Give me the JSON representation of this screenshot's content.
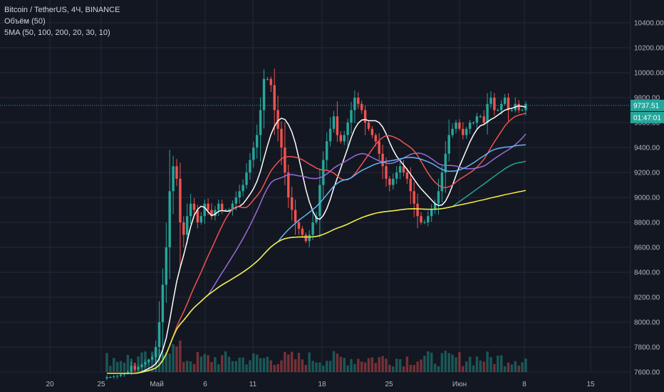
{
  "legend": {
    "symbol": "Bitcoin / TetherUS, 4Ч, BINANCE",
    "volume": "Объём (50)",
    "ma": "5MA (50, 100, 200, 20, 30, 10)"
  },
  "badges": {
    "price": "9737.51",
    "countdown": "01:47:01"
  },
  "colors": {
    "background": "#131722",
    "grid": "#242836",
    "up": "#26a69a",
    "down": "#ef5350",
    "price_line": "#26a69a",
    "ma10": "#ffffff",
    "ma20": "#ef5350",
    "ma30": "#9b6bd9",
    "ma50": "#64b5f6",
    "ma100": "#26a69a",
    "ma200": "#ffeb3b"
  },
  "chart_data": {
    "type": "candlestick",
    "title": "Bitcoin / TetherUS, 4Ч, BINANCE",
    "y_ticks": [
      "7600.00",
      "7800.00",
      "8000.00",
      "8200.00",
      "8400.00",
      "8600.00",
      "8800.00",
      "9000.00",
      "9200.00",
      "9400.00",
      "9600.00",
      "9800.00",
      "10000.00",
      "10200.00",
      "10400.00"
    ],
    "ylim": [
      7590,
      10430
    ],
    "x_ticks": [
      "20",
      "25",
      "Май",
      "6",
      "11",
      "18",
      "25",
      "Июн",
      "8",
      "15"
    ],
    "last_price": 9737.51,
    "grid": true,
    "closes": [
      7560,
      7560,
      7565,
      7570,
      7580,
      7585,
      7600,
      7650,
      7620,
      7640,
      7660,
      7680,
      7700,
      7720,
      7800,
      8000,
      8300,
      8600,
      9050,
      9250,
      9150,
      8800,
      8700,
      8850,
      8950,
      8900,
      8800,
      8850,
      8950,
      8900,
      8850,
      8900,
      8950,
      8900,
      8900,
      8900,
      8950,
      9000,
      9050,
      9100,
      9200,
      9300,
      9400,
      9500,
      9700,
      9950,
      9950,
      9900,
      9700,
      9550,
      9400,
      9200,
      9000,
      8900,
      8800,
      8750,
      8700,
      8650,
      8700,
      8800,
      8850,
      9100,
      9300,
      9450,
      9550,
      9650,
      9500,
      9450,
      9500,
      9600,
      9700,
      9800,
      9750,
      9700,
      9600,
      9550,
      9500,
      9450,
      9350,
      9250,
      9150,
      9100,
      9150,
      9200,
      9250,
      9200,
      9150,
      9050,
      8950,
      8850,
      8800,
      8800,
      8850,
      8900,
      8950,
      9050,
      9200,
      9350,
      9500,
      9550,
      9600,
      9550,
      9500,
      9550,
      9600,
      9600,
      9650,
      9650,
      9600,
      9750,
      9800,
      9700,
      9700,
      9750,
      9800,
      9700,
      9700,
      9750,
      9700,
      9700,
      9750
    ]
  }
}
